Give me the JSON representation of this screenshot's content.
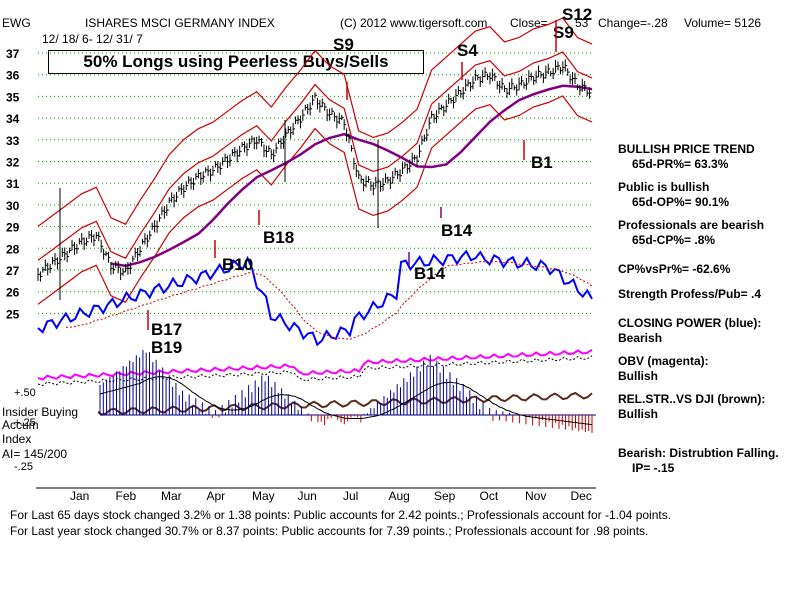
{
  "header": {
    "ticker": "EWG",
    "title": "ISHARES MSCI GERMANY INDEX",
    "copyright": "(C) 2012 www.tigersoft.com",
    "close_label": "Close=",
    "close_value": "53",
    "change": "Change=-.28",
    "volume": "Volume= 5126",
    "date_range": "12/ 18/ 6- 12/ 31/ 7"
  },
  "banner": "50% Longs using Peerless  Buys/Sells",
  "chart_data": {
    "type": "line",
    "title": "ISHARES MSCI GERMANY INDEX",
    "x_months": [
      "Jan",
      "Feb",
      "Mar",
      "Apr",
      "May",
      "Jun",
      "Jul",
      "Aug",
      "Sep",
      "Oct",
      "Nov",
      "Dec"
    ],
    "price_axis": {
      "ticks": [
        "37",
        "36",
        "35",
        "34",
        "33",
        "32",
        "31",
        "30",
        "29",
        "28",
        "27",
        "26",
        "25"
      ],
      "ylim": [
        24.5,
        37.5
      ]
    },
    "price_close": [
      26.8,
      27.3,
      27.8,
      28.3,
      28.6,
      27.2,
      26.9,
      28.0,
      29.0,
      30.1,
      30.8,
      31.3,
      31.6,
      32.1,
      32.6,
      33.0,
      32.3,
      33.2,
      34.0,
      34.9,
      34.2,
      33.8,
      31.2,
      30.9,
      31.1,
      31.6,
      32.2,
      34.0,
      34.6,
      35.2,
      35.8,
      36.0,
      35.3,
      35.5,
      35.9,
      36.1,
      36.4,
      35.5,
      35.2
    ],
    "indicators": {
      "oscillator_ticks": [
        "+.50",
        "+.25",
        "-.25"
      ],
      "accum_label": "Accum",
      "insider_label": "Insider Buying",
      "index_label": "Index",
      "ai_label": "AI= 145/200"
    },
    "signals": [
      {
        "label": "S9",
        "color": "#000000"
      },
      {
        "label": "S4",
        "color": "#000000"
      },
      {
        "label": "S9",
        "color": "#000000"
      },
      {
        "label": "S12",
        "color": "#000000"
      },
      {
        "label": "B1",
        "color": "#000000"
      },
      {
        "label": "B14",
        "color": "#000000"
      },
      {
        "label": "B14",
        "color": "#000000"
      },
      {
        "label": "B18",
        "color": "#000000"
      },
      {
        "label": "B10",
        "color": "#000000"
      },
      {
        "label": "B17",
        "color": "#000000"
      },
      {
        "label": "B19",
        "color": "#000000"
      }
    ]
  },
  "side_panel": {
    "trend_title": "BULLISH PRICE TREND",
    "pr": "65d-PR%= 63.3%",
    "public_title": "Public is bullish",
    "op": "65d-OP%= 90.1%",
    "pros_title": "Professionals are bearish",
    "cp": "65d-CP%= .8%",
    "cpvspr": "CP%vsPr%= -62.6%",
    "strength": "Strength Profess/Pub= .4",
    "closing_power_title": "CLOSING POWER (blue):",
    "closing_power_val": "Bearish",
    "obv_title": "OBV (magenta):",
    "obv_val": "Bullish",
    "relstr_title": "REL.STR..VS DJI (brown):",
    "relstr_val": "Bullish",
    "bearish_line": "Bearish: Distrubtion Falling.",
    "ip_line": "IP= -.15"
  },
  "footer": {
    "line1": "For Last 65 days stock changed  3.2% or  1.38 points:  Public accounts for  2.42 points.;  Professionals account for -1.04 points.",
    "line2": "For Last year stock changed  30.7% or  8.37 points:  Public accounts for  7.39 points.;  Professionals account for  .98 points."
  },
  "colors": {
    "band": "#cc0000",
    "ma": "#800080",
    "closing_power": "#0000ff",
    "obv": "#ff00ff",
    "relstr": "#5a2a1a",
    "accum_pos": "#000099",
    "accum_neg": "#cc0000"
  }
}
